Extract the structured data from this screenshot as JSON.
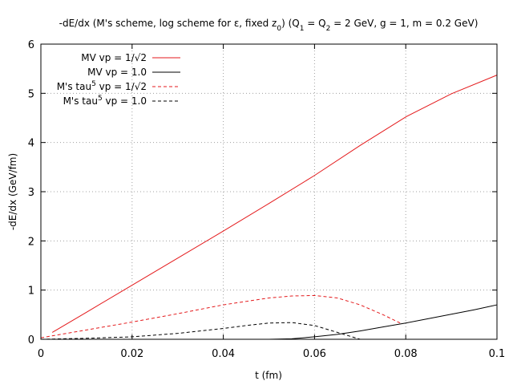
{
  "chart_data": {
    "type": "line",
    "title": "-dE/dx (M's scheme, log scheme for ε, fixed z₀) (Q₁ = Q₂ = 2 GeV, g = 1, m = 0.2 GeV)",
    "title_parts": [
      {
        "t": "-dE/dx (M's scheme, log scheme for ε, fixed z"
      },
      {
        "t": "0",
        "sub": true
      },
      {
        "t": ") (Q"
      },
      {
        "t": "1",
        "sub": true
      },
      {
        "t": " = Q"
      },
      {
        "t": "2",
        "sub": true
      },
      {
        "t": " = 2 GeV, g = 1, m = 0.2 GeV)"
      }
    ],
    "xlabel": "t (fm)",
    "ylabel": "-dE/dx (GeV/fm)",
    "xlim": [
      0,
      0.1
    ],
    "ylim": [
      0,
      6
    ],
    "x_ticks": [
      0,
      0.02,
      0.04,
      0.06,
      0.08,
      0.1
    ],
    "x_tick_labels": [
      "0",
      "0.02",
      "0.04",
      "0.06",
      "0.08",
      "0.1"
    ],
    "y_ticks": [
      0,
      1,
      2,
      3,
      4,
      5,
      6
    ],
    "y_tick_labels": [
      "0",
      "1",
      "2",
      "3",
      "4",
      "5",
      "6"
    ],
    "grid": true,
    "legend_position": "top-left",
    "series": [
      {
        "name": "MV vp = 1/√2",
        "label_parts": [
          {
            "t": "MV vp = 1/√2"
          }
        ],
        "color": "#e41a1c",
        "dash": "solid",
        "x": [
          0.0025,
          0.01,
          0.02,
          0.03,
          0.04,
          0.05,
          0.06,
          0.07,
          0.08,
          0.09,
          0.1
        ],
        "y": [
          0.14,
          0.55,
          1.1,
          1.65,
          2.2,
          2.76,
          3.33,
          3.94,
          4.52,
          4.99,
          5.37
        ]
      },
      {
        "name": "MV vp = 1.0",
        "label_parts": [
          {
            "t": "MV vp = 1.0"
          }
        ],
        "color": "#000000",
        "dash": "solid",
        "x": [
          0.0025,
          0.02,
          0.04,
          0.05,
          0.055,
          0.06,
          0.065,
          0.07,
          0.075,
          0.08,
          0.085,
          0.09,
          0.095,
          0.1
        ],
        "y": [
          0.0,
          0.0,
          0.0,
          0.0,
          0.01,
          0.05,
          0.1,
          0.17,
          0.25,
          0.33,
          0.42,
          0.51,
          0.6,
          0.7
        ]
      },
      {
        "name": "M's tau5 vp = 1/√2",
        "label_parts": [
          {
            "t": "M's tau"
          },
          {
            "t": "5",
            "sup": true
          },
          {
            "t": " vp = 1/√2"
          }
        ],
        "color": "#e41a1c",
        "dash": "dashed",
        "x": [
          0.0,
          0.01,
          0.02,
          0.03,
          0.04,
          0.05,
          0.055,
          0.06,
          0.065,
          0.07,
          0.075,
          0.079
        ],
        "y": [
          0.03,
          0.19,
          0.35,
          0.52,
          0.7,
          0.84,
          0.88,
          0.89,
          0.84,
          0.7,
          0.5,
          0.32
        ]
      },
      {
        "name": "M's tau5 vp = 1.0",
        "label_parts": [
          {
            "t": "M's tau"
          },
          {
            "t": "5",
            "sup": true
          },
          {
            "t": " vp = 1.0"
          }
        ],
        "color": "#000000",
        "dash": "dashed",
        "x": [
          0.0,
          0.01,
          0.02,
          0.03,
          0.04,
          0.045,
          0.05,
          0.055,
          0.06,
          0.065,
          0.07
        ],
        "y": [
          0.0,
          0.02,
          0.05,
          0.12,
          0.22,
          0.28,
          0.33,
          0.34,
          0.28,
          0.14,
          0.0
        ]
      }
    ]
  }
}
